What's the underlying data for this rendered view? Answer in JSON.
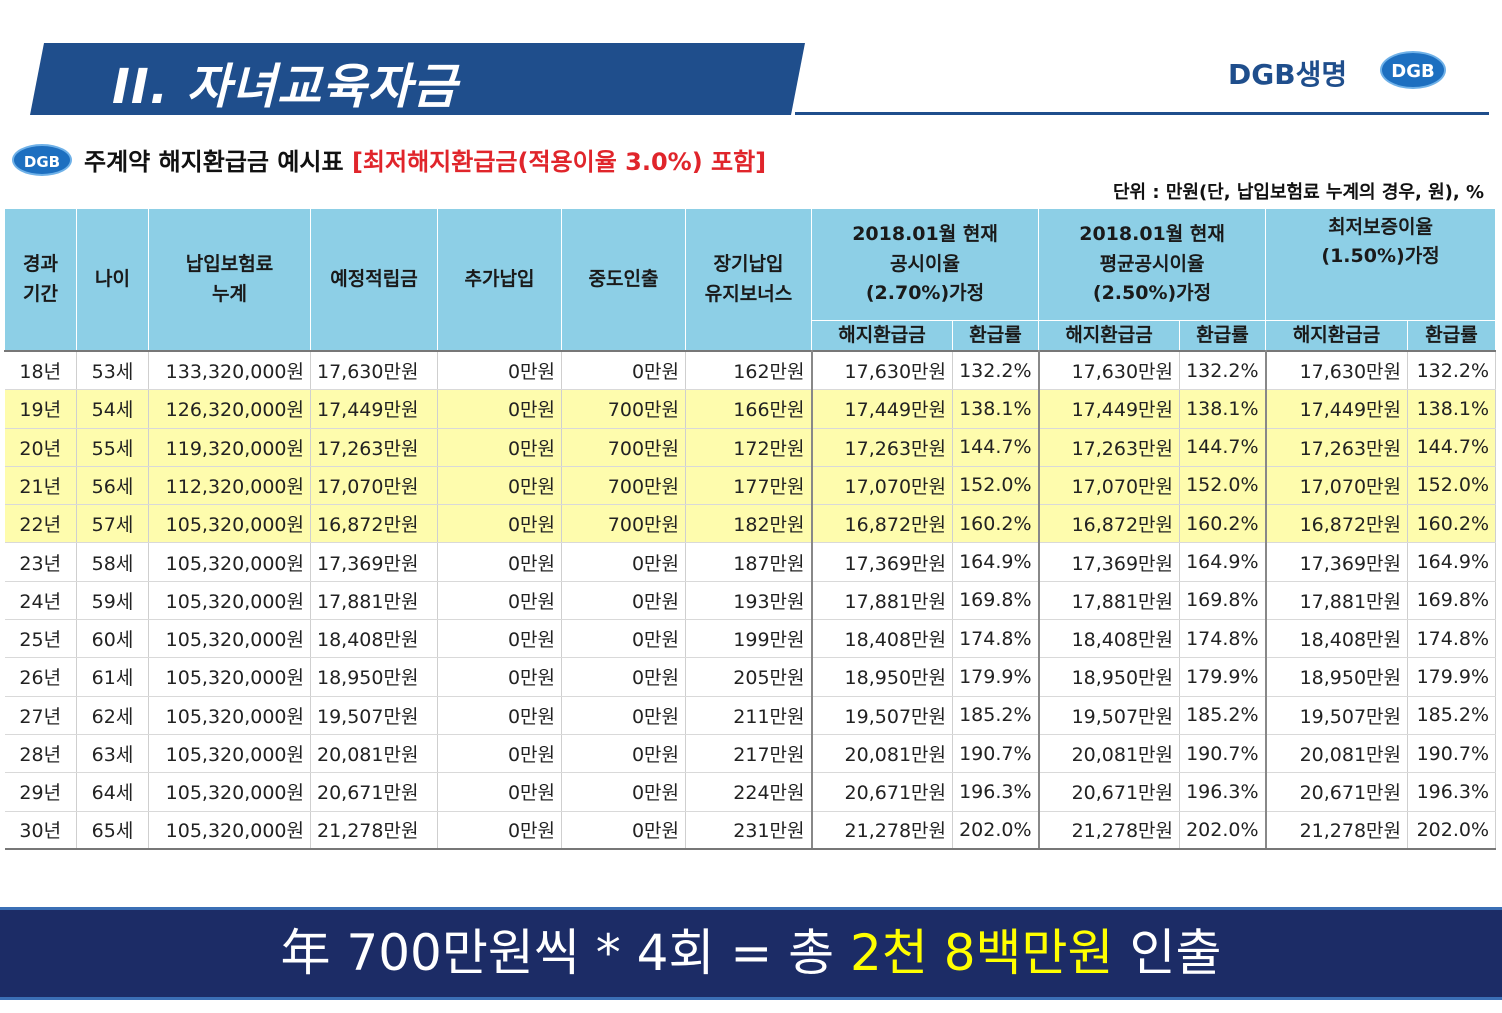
{
  "header": {
    "title": "II. 자녀교육자금",
    "brand": "DGB생명",
    "brand_logo": "DGB",
    "banner_color": "#1f4e8c"
  },
  "section": {
    "logo": "DGB",
    "title": "주계약 해지환급금 예시표 ",
    "title_highlight": "[최저해지환급금(적용이율 3.0%) 포함]",
    "unit": "단위 : 만원(단, 납입보험료 누계의 경우, 원), %"
  },
  "table": {
    "headers": {
      "period": "경과\n기간",
      "age": "나이",
      "premium": "납입보험료\n누계",
      "expected": "예정적립금",
      "additional": "추가납입",
      "withdrawal": "중도인출",
      "bonus": "장기납입\n유지보너스",
      "group1": "2018.01월 현재\n공시이율\n(2.70%)가정",
      "group2": "2018.01월 현재\n평균공시이율\n(2.50%)가정",
      "group3": "최저보증이율\n(1.50%)가정",
      "refund": "해지환급금",
      "rate": "환급률"
    },
    "rows": [
      {
        "period": "18년",
        "age": "53세",
        "premium": "133,320,000원",
        "expected": "17,630만원",
        "additional": "0만원",
        "withdrawal": "0만원",
        "bonus": "162만원",
        "r1": "17,630만원",
        "p1": "132.2%",
        "r2": "17,630만원",
        "p2": "132.2%",
        "r3": "17,630만원",
        "p3": "132.2%",
        "highlight": false
      },
      {
        "period": "19년",
        "age": "54세",
        "premium": "126,320,000원",
        "expected": "17,449만원",
        "additional": "0만원",
        "withdrawal": "700만원",
        "bonus": "166만원",
        "r1": "17,449만원",
        "p1": "138.1%",
        "r2": "17,449만원",
        "p2": "138.1%",
        "r3": "17,449만원",
        "p3": "138.1%",
        "highlight": true
      },
      {
        "period": "20년",
        "age": "55세",
        "premium": "119,320,000원",
        "expected": "17,263만원",
        "additional": "0만원",
        "withdrawal": "700만원",
        "bonus": "172만원",
        "r1": "17,263만원",
        "p1": "144.7%",
        "r2": "17,263만원",
        "p2": "144.7%",
        "r3": "17,263만원",
        "p3": "144.7%",
        "highlight": true
      },
      {
        "period": "21년",
        "age": "56세",
        "premium": "112,320,000원",
        "expected": "17,070만원",
        "additional": "0만원",
        "withdrawal": "700만원",
        "bonus": "177만원",
        "r1": "17,070만원",
        "p1": "152.0%",
        "r2": "17,070만원",
        "p2": "152.0%",
        "r3": "17,070만원",
        "p3": "152.0%",
        "highlight": true
      },
      {
        "period": "22년",
        "age": "57세",
        "premium": "105,320,000원",
        "expected": "16,872만원",
        "additional": "0만원",
        "withdrawal": "700만원",
        "bonus": "182만원",
        "r1": "16,872만원",
        "p1": "160.2%",
        "r2": "16,872만원",
        "p2": "160.2%",
        "r3": "16,872만원",
        "p3": "160.2%",
        "highlight": true
      },
      {
        "period": "23년",
        "age": "58세",
        "premium": "105,320,000원",
        "expected": "17,369만원",
        "additional": "0만원",
        "withdrawal": "0만원",
        "bonus": "187만원",
        "r1": "17,369만원",
        "p1": "164.9%",
        "r2": "17,369만원",
        "p2": "164.9%",
        "r3": "17,369만원",
        "p3": "164.9%",
        "highlight": false
      },
      {
        "period": "24년",
        "age": "59세",
        "premium": "105,320,000원",
        "expected": "17,881만원",
        "additional": "0만원",
        "withdrawal": "0만원",
        "bonus": "193만원",
        "r1": "17,881만원",
        "p1": "169.8%",
        "r2": "17,881만원",
        "p2": "169.8%",
        "r3": "17,881만원",
        "p3": "169.8%",
        "highlight": false
      },
      {
        "period": "25년",
        "age": "60세",
        "premium": "105,320,000원",
        "expected": "18,408만원",
        "additional": "0만원",
        "withdrawal": "0만원",
        "bonus": "199만원",
        "r1": "18,408만원",
        "p1": "174.8%",
        "r2": "18,408만원",
        "p2": "174.8%",
        "r3": "18,408만원",
        "p3": "174.8%",
        "highlight": false
      },
      {
        "period": "26년",
        "age": "61세",
        "premium": "105,320,000원",
        "expected": "18,950만원",
        "additional": "0만원",
        "withdrawal": "0만원",
        "bonus": "205만원",
        "r1": "18,950만원",
        "p1": "179.9%",
        "r2": "18,950만원",
        "p2": "179.9%",
        "r3": "18,950만원",
        "p3": "179.9%",
        "highlight": false
      },
      {
        "period": "27년",
        "age": "62세",
        "premium": "105,320,000원",
        "expected": "19,507만원",
        "additional": "0만원",
        "withdrawal": "0만원",
        "bonus": "211만원",
        "r1": "19,507만원",
        "p1": "185.2%",
        "r2": "19,507만원",
        "p2": "185.2%",
        "r3": "19,507만원",
        "p3": "185.2%",
        "highlight": false
      },
      {
        "period": "28년",
        "age": "63세",
        "premium": "105,320,000원",
        "expected": "20,081만원",
        "additional": "0만원",
        "withdrawal": "0만원",
        "bonus": "217만원",
        "r1": "20,081만원",
        "p1": "190.7%",
        "r2": "20,081만원",
        "p2": "190.7%",
        "r3": "20,081만원",
        "p3": "190.7%",
        "highlight": false
      },
      {
        "period": "29년",
        "age": "64세",
        "premium": "105,320,000원",
        "expected": "20,671만원",
        "additional": "0만원",
        "withdrawal": "0만원",
        "bonus": "224만원",
        "r1": "20,671만원",
        "p1": "196.3%",
        "r2": "20,671만원",
        "p2": "196.3%",
        "r3": "20,671만원",
        "p3": "196.3%",
        "highlight": false
      },
      {
        "period": "30년",
        "age": "65세",
        "premium": "105,320,000원",
        "expected": "21,278만원",
        "additional": "0만원",
        "withdrawal": "0만원",
        "bonus": "231만원",
        "r1": "21,278만원",
        "p1": "202.0%",
        "r2": "21,278만원",
        "p2": "202.0%",
        "r3": "21,278만원",
        "p3": "202.0%",
        "highlight": false
      }
    ],
    "header_color": "#8dcfe6",
    "highlight_color": "#fefcad"
  },
  "footer": {
    "text_prefix": "年 700만원씩 * 4회 = 총 ",
    "text_highlight": "2천 8백만원",
    "text_suffix": " 인출",
    "background_color": "#1c2c66",
    "highlight_color": "#ffff00"
  }
}
